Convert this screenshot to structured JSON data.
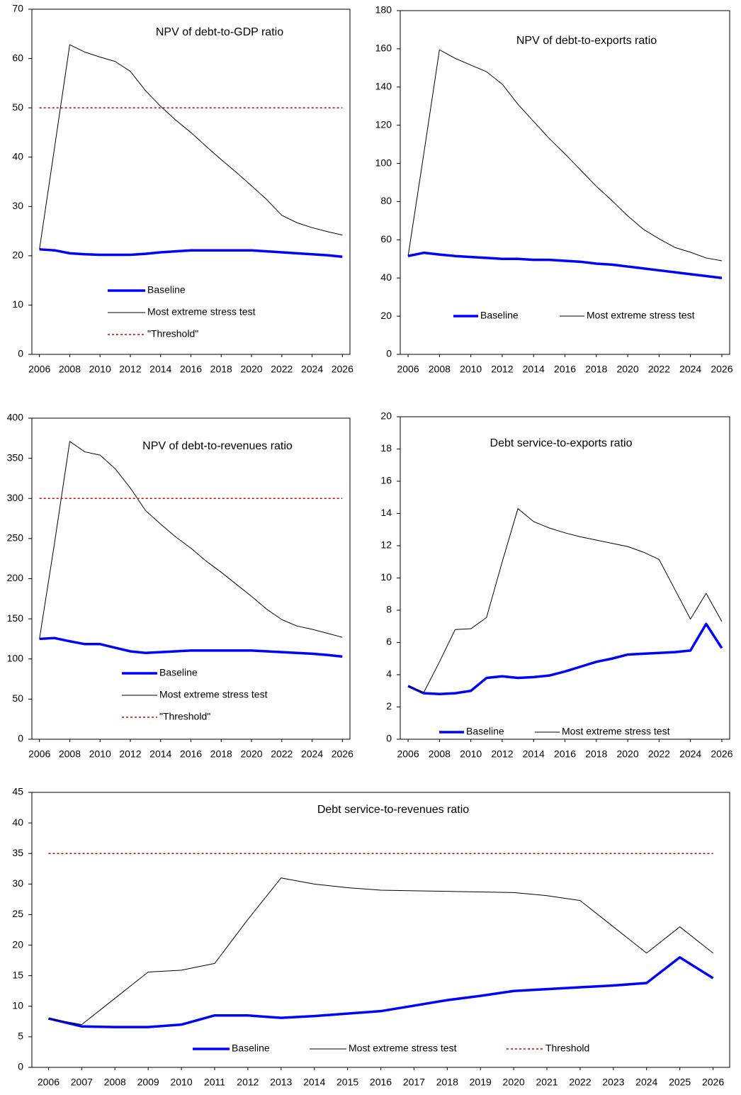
{
  "chart_data": [
    {
      "type": "line",
      "title": "NPV of debt-to-GDP ratio",
      "x": [
        2006,
        2007,
        2008,
        2009,
        2010,
        2011,
        2012,
        2013,
        2014,
        2015,
        2016,
        2017,
        2018,
        2019,
        2020,
        2021,
        2022,
        2023,
        2024,
        2025,
        2026
      ],
      "xlim": [
        2005.5,
        2026.5
      ],
      "xticks": [
        2006,
        2008,
        2010,
        2012,
        2014,
        2016,
        2018,
        2020,
        2022,
        2024,
        2026
      ],
      "ylim": [
        0,
        70
      ],
      "yticks": [
        0,
        10,
        20,
        30,
        40,
        50,
        60,
        70
      ],
      "series": [
        {
          "name": "Baseline",
          "color": "#0000ff",
          "style": "solid",
          "width": 3.5,
          "values": [
            21.3,
            21.1,
            20.5,
            20.3,
            20.2,
            20.2,
            20.2,
            20.4,
            20.7,
            20.9,
            21.1,
            21.1,
            21.1,
            21.1,
            21.1,
            20.9,
            20.7,
            20.5,
            20.3,
            20.1,
            19.8
          ]
        },
        {
          "name": "Most extreme stress test",
          "color": "#000000",
          "style": "solid",
          "width": 1,
          "values": [
            21.3,
            42,
            62.8,
            61.3,
            60.3,
            59.4,
            57.4,
            53.5,
            50.3,
            47.5,
            45,
            42.2,
            39.5,
            36.9,
            34.2,
            31.4,
            28.2,
            26.7,
            25.7,
            24.9,
            24.2
          ]
        },
        {
          "name": "\"Threshold\"",
          "color": "#cc0000",
          "style": "dotted",
          "width": 1.5,
          "values": [
            50,
            50,
            50,
            50,
            50,
            50,
            50,
            50,
            50,
            50,
            50,
            50,
            50,
            50,
            50,
            50,
            50,
            50,
            50,
            50,
            50
          ]
        }
      ]
    },
    {
      "type": "line",
      "title": "NPV of debt-to-exports ratio",
      "x": [
        2006,
        2007,
        2008,
        2009,
        2010,
        2011,
        2012,
        2013,
        2014,
        2015,
        2016,
        2017,
        2018,
        2019,
        2020,
        2021,
        2022,
        2023,
        2024,
        2025,
        2026
      ],
      "xlim": [
        2005.5,
        2026.5
      ],
      "xticks": [
        2006,
        2008,
        2010,
        2012,
        2014,
        2016,
        2018,
        2020,
        2022,
        2024,
        2026
      ],
      "ylim": [
        0,
        180
      ],
      "yticks": [
        0,
        20,
        40,
        60,
        80,
        100,
        120,
        140,
        160,
        180
      ],
      "series": [
        {
          "name": "Baseline",
          "color": "#0000ff",
          "style": "solid",
          "width": 3.5,
          "values": [
            51.5,
            53.2,
            52.3,
            51.5,
            51,
            50.5,
            50,
            50,
            49.5,
            49.5,
            49,
            48.5,
            47.5,
            47,
            46,
            45,
            44,
            43,
            42,
            41,
            40
          ]
        },
        {
          "name": "Most extreme stress test",
          "color": "#000000",
          "style": "solid",
          "width": 1,
          "values": [
            51.5,
            105,
            159.5,
            155,
            151.5,
            148,
            141.5,
            131,
            122,
            113,
            105,
            96.5,
            88,
            80.5,
            72.5,
            65.5,
            60.5,
            56,
            53.5,
            50.5,
            49
          ]
        }
      ]
    },
    {
      "type": "line",
      "title": "NPV of debt-to-revenues ratio",
      "x": [
        2006,
        2007,
        2008,
        2009,
        2010,
        2011,
        2012,
        2013,
        2014,
        2015,
        2016,
        2017,
        2018,
        2019,
        2020,
        2021,
        2022,
        2023,
        2024,
        2025,
        2026
      ],
      "xlim": [
        2005.5,
        2026.5
      ],
      "xticks": [
        2006,
        2008,
        2010,
        2012,
        2014,
        2016,
        2018,
        2020,
        2022,
        2024,
        2026
      ],
      "ylim": [
        0,
        400
      ],
      "yticks": [
        0,
        50,
        100,
        150,
        200,
        250,
        300,
        350,
        400
      ],
      "series": [
        {
          "name": "Baseline",
          "color": "#0000ff",
          "style": "solid",
          "width": 3.5,
          "values": [
            125,
            126,
            122,
            118.5,
            118.5,
            114,
            109.5,
            107.5,
            108.5,
            109.5,
            110.5,
            110.5,
            110.5,
            110.5,
            110.5,
            109.5,
            108.5,
            107.5,
            106.5,
            105,
            103
          ]
        },
        {
          "name": "Most extreme stress test",
          "color": "#000000",
          "style": "solid",
          "width": 1,
          "values": [
            125,
            245,
            371,
            358,
            354,
            337,
            313,
            285,
            268,
            252,
            238,
            222,
            208,
            193,
            178,
            162,
            149,
            141,
            137,
            132,
            127
          ]
        },
        {
          "name": "\"Threshold\"",
          "color": "#cc0000",
          "style": "dotted",
          "width": 1.5,
          "values": [
            300,
            300,
            300,
            300,
            300,
            300,
            300,
            300,
            300,
            300,
            300,
            300,
            300,
            300,
            300,
            300,
            300,
            300,
            300,
            300,
            300
          ]
        }
      ]
    },
    {
      "type": "line",
      "title": "Debt service-to-exports ratio",
      "x": [
        2006,
        2007,
        2008,
        2009,
        2010,
        2011,
        2012,
        2013,
        2014,
        2015,
        2016,
        2017,
        2018,
        2019,
        2020,
        2021,
        2022,
        2023,
        2024,
        2025,
        2026
      ],
      "xlim": [
        2005.5,
        2026.5
      ],
      "xticks": [
        2006,
        2008,
        2010,
        2012,
        2014,
        2016,
        2018,
        2020,
        2022,
        2024,
        2026
      ],
      "ylim": [
        0,
        20
      ],
      "yticks": [
        0,
        2,
        4,
        6,
        8,
        10,
        12,
        14,
        16,
        18,
        20
      ],
      "series": [
        {
          "name": "Baseline",
          "color": "#0000ff",
          "style": "solid",
          "width": 3.5,
          "values": [
            3.3,
            2.85,
            2.8,
            2.85,
            3.0,
            3.8,
            3.9,
            3.8,
            3.85,
            3.95,
            4.2,
            4.5,
            4.8,
            5.0,
            5.25,
            5.3,
            5.35,
            5.4,
            5.5,
            7.15,
            5.65
          ]
        },
        {
          "name": "Most extreme stress test",
          "color": "#000000",
          "style": "solid",
          "width": 1,
          "values": [
            3.3,
            2.9,
            4.8,
            6.8,
            6.85,
            7.55,
            11.0,
            14.3,
            13.5,
            13.1,
            12.8,
            12.55,
            12.35,
            12.15,
            11.95,
            11.6,
            11.15,
            9.3,
            7.45,
            9.05,
            7.3
          ]
        }
      ]
    },
    {
      "type": "line",
      "title": "Debt service-to-revenues ratio",
      "x": [
        2006,
        2007,
        2008,
        2009,
        2010,
        2011,
        2012,
        2013,
        2014,
        2015,
        2016,
        2017,
        2018,
        2019,
        2020,
        2021,
        2022,
        2023,
        2024,
        2025,
        2026
      ],
      "xlim": [
        2005.5,
        2026.5
      ],
      "xticks": [
        2006,
        2007,
        2008,
        2009,
        2010,
        2011,
        2012,
        2013,
        2014,
        2015,
        2016,
        2017,
        2018,
        2019,
        2020,
        2021,
        2022,
        2023,
        2024,
        2025,
        2026
      ],
      "ylim": [
        0,
        45
      ],
      "yticks": [
        0,
        5,
        10,
        15,
        20,
        25,
        30,
        35,
        40,
        45
      ],
      "series": [
        {
          "name": "Baseline",
          "color": "#0000ff",
          "style": "solid",
          "width": 3.5,
          "values": [
            8.0,
            6.7,
            6.6,
            6.6,
            7.0,
            8.5,
            8.5,
            8.1,
            8.4,
            8.8,
            9.2,
            10.1,
            11.0,
            11.7,
            12.5,
            12.8,
            13.1,
            13.4,
            13.8,
            18.0,
            14.6
          ]
        },
        {
          "name": "Most extreme stress test",
          "color": "#000000",
          "style": "solid",
          "width": 1,
          "values": [
            8.0,
            7.0,
            11.3,
            15.6,
            15.9,
            17.0,
            24.2,
            31.0,
            30.0,
            29.4,
            29.0,
            28.9,
            28.8,
            28.7,
            28.6,
            28.1,
            27.3,
            23.0,
            18.7,
            23.0,
            18.7
          ]
        },
        {
          "name": "Threshold",
          "color": "#cc0000",
          "style": "dotted",
          "width": 1.5,
          "values": [
            35,
            35,
            35,
            35,
            35,
            35,
            35,
            35,
            35,
            35,
            35,
            35,
            35,
            35,
            35,
            35,
            35,
            35,
            35,
            35,
            35
          ]
        }
      ]
    }
  ]
}
